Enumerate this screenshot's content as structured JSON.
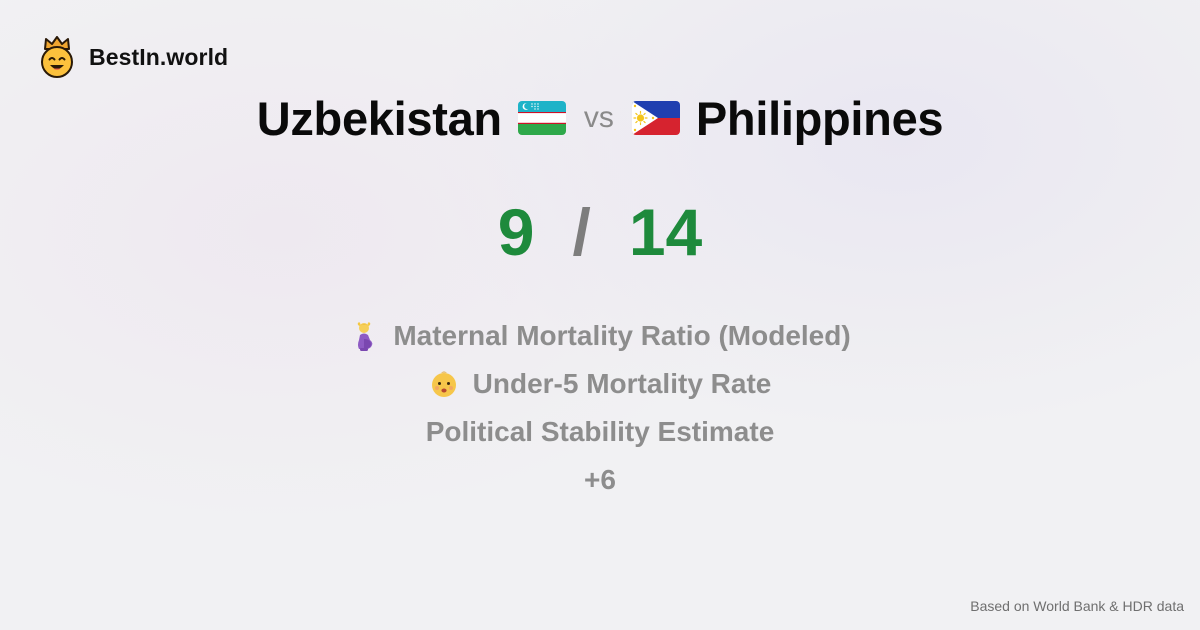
{
  "brand": {
    "name": "BestIn.world",
    "icon": "crown-smiley-icon"
  },
  "comparison": {
    "country_a": "Uzbekistan",
    "flag_a": "uzbekistan-flag-icon",
    "vs_label": "vs",
    "country_b": "Philippines",
    "flag_b": "philippines-flag-icon"
  },
  "score": {
    "left": "9",
    "separator": "/",
    "right": "14",
    "color": "#1e8a3c"
  },
  "metrics": [
    {
      "icon": "pregnant-woman-icon",
      "label": "Maternal Mortality Ratio (Modeled)"
    },
    {
      "icon": "baby-icon",
      "label": "Under-5 Mortality Rate"
    },
    {
      "icon": "",
      "label": "Political Stability Estimate"
    },
    {
      "icon": "",
      "label": "+6"
    }
  ],
  "footer": {
    "source": "Based on World Bank & HDR data"
  }
}
